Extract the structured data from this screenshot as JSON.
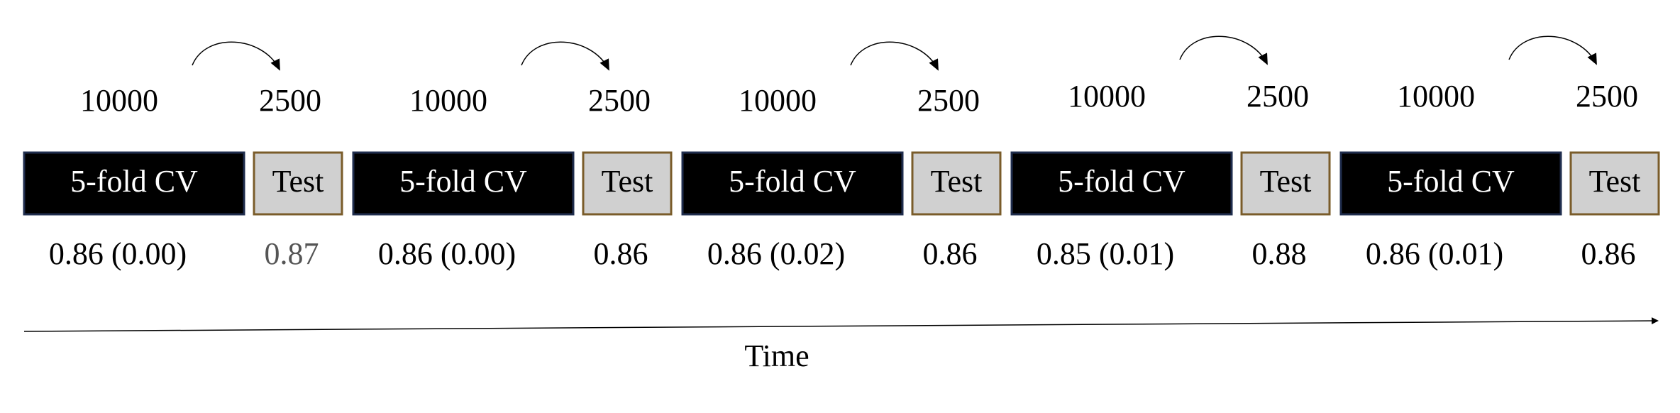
{
  "groups": [
    {
      "train_size": "10000",
      "test_size": "2500",
      "cv_label": "5-fold CV",
      "test_label": "Test",
      "cv_score": "0.86 (0.00)",
      "test_score": "0.87"
    },
    {
      "train_size": "10000",
      "test_size": "2500",
      "cv_label": "5-fold CV",
      "test_label": "Test",
      "cv_score": "0.86 (0.00)",
      "test_score": "0.86"
    },
    {
      "train_size": "10000",
      "test_size": "2500",
      "cv_label": "5-fold CV",
      "test_label": "Test",
      "cv_score": "0.86 (0.02)",
      "test_score": "0.86"
    },
    {
      "train_size": "10000",
      "test_size": "2500",
      "cv_label": "5-fold CV",
      "test_label": "Test",
      "cv_score": "0.85 (0.01)",
      "test_score": "0.88"
    },
    {
      "train_size": "10000",
      "test_size": "2500",
      "cv_label": "5-fold CV",
      "test_label": "Test",
      "cv_score": "0.86 (0.01)",
      "test_score": "0.86"
    }
  ],
  "axis_label": "Time"
}
